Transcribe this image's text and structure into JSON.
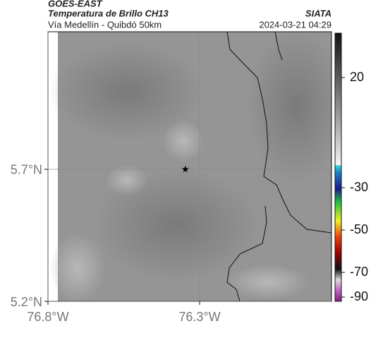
{
  "header": {
    "satellite": "GOES-EAST",
    "product": "Temperatura de Brillo CH13",
    "source": "SIATA",
    "region": "Vía Medellín - Quibdó 50km",
    "timestamp": "2024-03-21 04:29"
  },
  "map": {
    "lonlim": [
      -76.8,
      -75.865
    ],
    "latlim": [
      5.2,
      6.221
    ],
    "lon_ticks": [
      {
        "value": -76.8,
        "label": "76.8°W"
      },
      {
        "value": -76.3,
        "label": "76.3°W"
      }
    ],
    "lat_ticks": [
      {
        "value": 5.7,
        "label": "5.7°N"
      },
      {
        "value": 5.2,
        "label": "5.2°N"
      }
    ],
    "marker": {
      "lon": -76.347,
      "lat": 5.7
    }
  },
  "colorbar": {
    "ticks": [
      20,
      -30,
      -50,
      -70,
      -90
    ]
  }
}
